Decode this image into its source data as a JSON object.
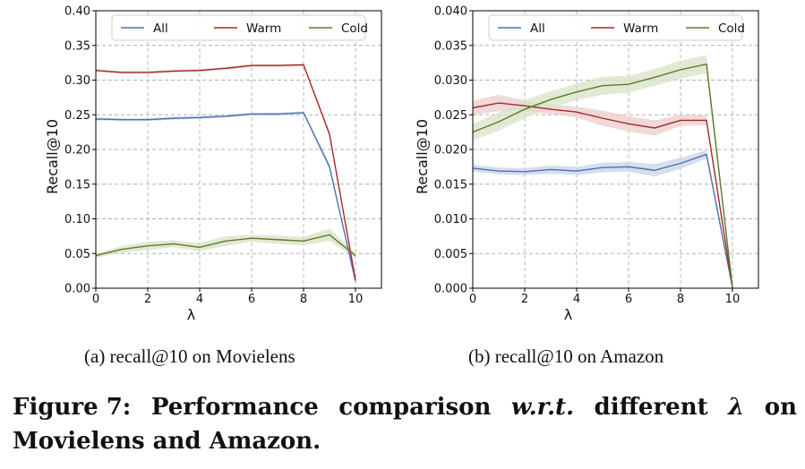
{
  "figure_caption": {
    "prefix": "Figure 7:",
    "w1": "Performance",
    "w2": "comparison",
    "w3": "w.r.t.",
    "w4": "different",
    "w5": "λ",
    "w6": "on",
    "line2": "Movielens and Amazon."
  },
  "chart_data": [
    {
      "type": "line",
      "subcaption": "(a)  recall@10 on Movielens",
      "xlabel": "λ",
      "ylabel": "Recall@10",
      "xlim": [
        0,
        11
      ],
      "ylim": [
        0,
        0.4
      ],
      "xticks": [
        "0",
        "2",
        "4",
        "6",
        "8",
        "10"
      ],
      "yticks": [
        "0.00",
        "0.05",
        "0.10",
        "0.15",
        "0.20",
        "0.25",
        "0.30",
        "0.35",
        "0.40"
      ],
      "grid": true,
      "legend": "top-center",
      "x": [
        0,
        1,
        2,
        3,
        4,
        5,
        6,
        7,
        8,
        9,
        10
      ],
      "series": [
        {
          "name": "All",
          "color": "#4c72b0",
          "band_color": "#c8d3e6",
          "values": [
            0.244,
            0.243,
            0.243,
            0.245,
            0.246,
            0.248,
            0.251,
            0.251,
            0.253,
            0.175,
            0.01
          ],
          "band": [
            0.002,
            0.002,
            0.002,
            0.002,
            0.002,
            0.002,
            0.002,
            0.002,
            0.002,
            0.004,
            0.002
          ]
        },
        {
          "name": "Warm",
          "color": "#a52a2a",
          "band_color": "#ebcccc",
          "values": [
            0.314,
            0.311,
            0.311,
            0.313,
            0.314,
            0.317,
            0.321,
            0.321,
            0.322,
            0.222,
            0.012
          ],
          "band": [
            0.002,
            0.002,
            0.002,
            0.002,
            0.002,
            0.002,
            0.002,
            0.002,
            0.002,
            0.004,
            0.002
          ]
        },
        {
          "name": "Cold",
          "color": "#5b7b2a",
          "band_color": "#d8e2c6",
          "values": [
            0.047,
            0.056,
            0.061,
            0.064,
            0.059,
            0.068,
            0.072,
            0.07,
            0.068,
            0.077,
            0.047
          ],
          "band": [
            0.003,
            0.005,
            0.006,
            0.005,
            0.006,
            0.007,
            0.005,
            0.006,
            0.006,
            0.009,
            0.004
          ]
        }
      ]
    },
    {
      "type": "line",
      "subcaption": "(b)  recall@10 on Amazon",
      "xlabel": "λ",
      "ylabel": "Recall@10",
      "xlim": [
        0,
        11
      ],
      "ylim": [
        0,
        0.04
      ],
      "xticks": [
        "0",
        "2",
        "4",
        "6",
        "8",
        "10"
      ],
      "yticks": [
        "0.000",
        "0.005",
        "0.010",
        "0.015",
        "0.020",
        "0.025",
        "0.030",
        "0.035",
        "0.040"
      ],
      "grid": true,
      "legend": "top-center",
      "x": [
        0,
        1,
        2,
        3,
        4,
        5,
        6,
        7,
        8,
        9,
        10
      ],
      "series": [
        {
          "name": "All",
          "color": "#4c72b0",
          "band_color": "#c8d3e6",
          "values": [
            0.0173,
            0.0169,
            0.0168,
            0.0171,
            0.0169,
            0.0174,
            0.0175,
            0.017,
            0.018,
            0.0193,
            0.0001
          ],
          "band": [
            0.0005,
            0.0005,
            0.0005,
            0.0006,
            0.0006,
            0.0007,
            0.0007,
            0.0009,
            0.0008,
            0.0006,
            0.0001
          ]
        },
        {
          "name": "Warm",
          "color": "#a52a2a",
          "band_color": "#ebcccc",
          "values": [
            0.026,
            0.0267,
            0.0263,
            0.0258,
            0.0254,
            0.0245,
            0.0237,
            0.0231,
            0.0242,
            0.0242,
            0.0001
          ],
          "band": [
            0.001,
            0.0012,
            0.0008,
            0.0007,
            0.0008,
            0.0011,
            0.0011,
            0.0011,
            0.0008,
            0.0007,
            0.0001
          ]
        },
        {
          "name": "Cold",
          "color": "#5b7b2a",
          "band_color": "#d8e2c6",
          "values": [
            0.0225,
            0.024,
            0.0258,
            0.0272,
            0.0283,
            0.0292,
            0.0294,
            0.0304,
            0.0315,
            0.0323,
            0.0001
          ],
          "band": [
            0.0012,
            0.0013,
            0.0013,
            0.0012,
            0.0012,
            0.0013,
            0.0012,
            0.0012,
            0.0013,
            0.0013,
            0.0001
          ]
        }
      ]
    }
  ]
}
